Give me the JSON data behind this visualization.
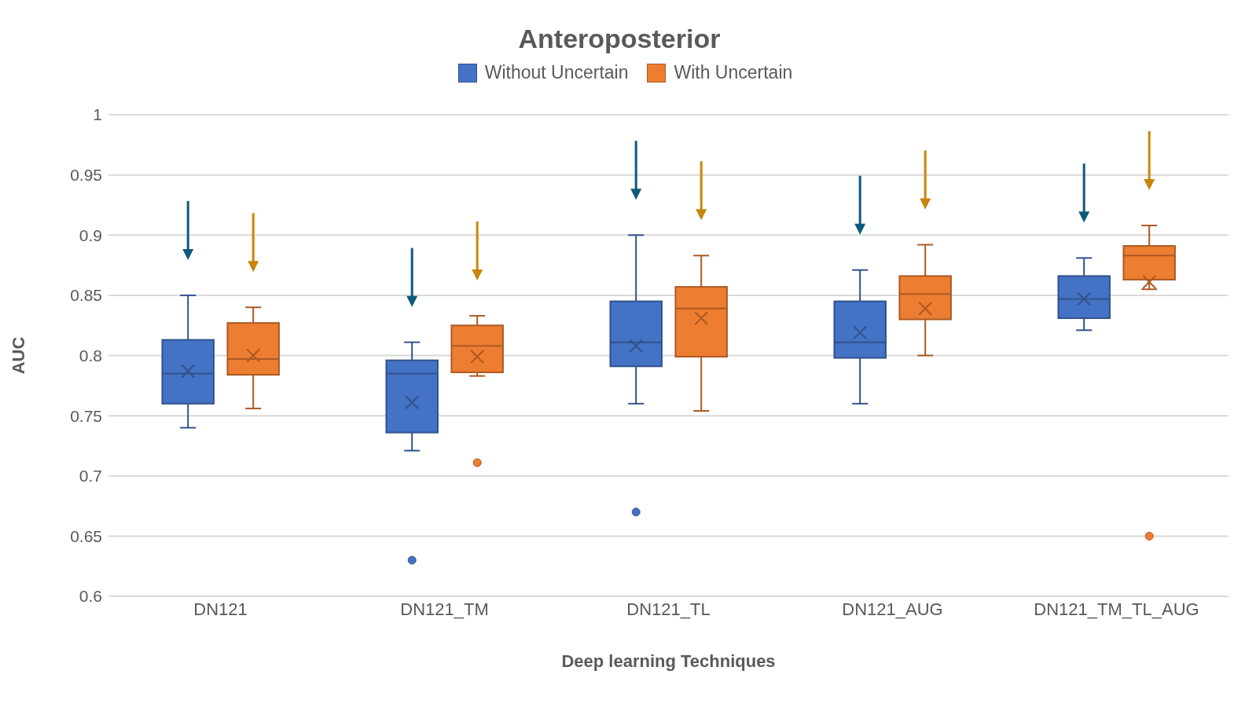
{
  "chart_data": {
    "type": "box",
    "title": "Anteroposterior",
    "xlabel": "Deep learning Techniques",
    "ylabel": "AUC",
    "categories": [
      "DN121",
      "DN121_TM",
      "DN121_TL",
      "DN121_AUG",
      "DN121_TM_TL_AUG"
    ],
    "series": [
      {
        "name": "Without Uncertain",
        "color": "#4472c4",
        "boxes": [
          {
            "low": 0.74,
            "q1": 0.76,
            "median": 0.785,
            "q3": 0.813,
            "high": 0.85,
            "mean": 0.787
          },
          {
            "low": 0.721,
            "q1": 0.736,
            "median": 0.785,
            "q3": 0.796,
            "high": 0.811,
            "mean": 0.761,
            "outliers": [
              0.63
            ]
          },
          {
            "low": 0.76,
            "q1": 0.791,
            "median": 0.811,
            "q3": 0.845,
            "high": 0.9,
            "mean": 0.808,
            "outliers": [
              0.67
            ]
          },
          {
            "low": 0.76,
            "q1": 0.798,
            "median": 0.811,
            "q3": 0.845,
            "high": 0.871,
            "mean": 0.819
          },
          {
            "low": 0.821,
            "q1": 0.831,
            "median": 0.847,
            "q3": 0.866,
            "high": 0.881,
            "mean": 0.847
          }
        ]
      },
      {
        "name": "With Uncertain",
        "color": "#ed7d31",
        "boxes": [
          {
            "low": 0.756,
            "q1": 0.784,
            "median": 0.797,
            "q3": 0.827,
            "high": 0.84,
            "mean": 0.8
          },
          {
            "low": 0.783,
            "q1": 0.786,
            "median": 0.808,
            "q3": 0.825,
            "high": 0.833,
            "mean": 0.799,
            "outliers": [
              0.711
            ]
          },
          {
            "low": 0.754,
            "q1": 0.799,
            "median": 0.839,
            "q3": 0.857,
            "high": 0.883,
            "mean": 0.831
          },
          {
            "low": 0.8,
            "q1": 0.83,
            "median": 0.851,
            "q3": 0.866,
            "high": 0.892,
            "mean": 0.839
          },
          {
            "low": 0.855,
            "q1": 0.863,
            "median": 0.883,
            "q3": 0.891,
            "high": 0.908,
            "mean": 0.861,
            "outliers": [
              0.65
            ]
          }
        ]
      }
    ],
    "ylim": [
      0.6,
      1
    ],
    "yticks": [
      0.6,
      0.65,
      0.7,
      0.75,
      0.8,
      0.85,
      0.9,
      0.95,
      1
    ],
    "grid": "y",
    "legend": "top"
  }
}
